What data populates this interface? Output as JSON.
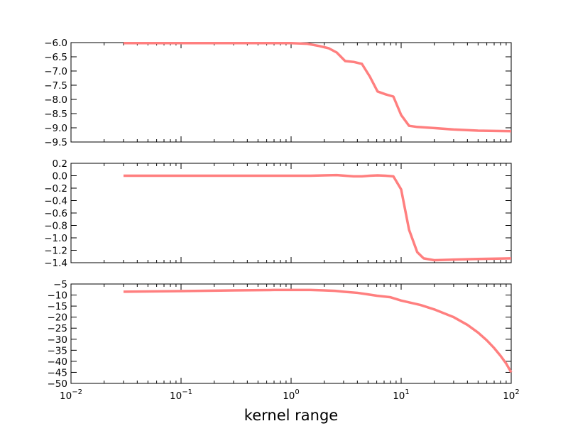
{
  "chart_data": [
    {
      "type": "line",
      "title": "",
      "xlabel": "",
      "ylabel": "",
      "xscale": "log",
      "xlim": [
        0.01,
        100
      ],
      "ylim": [
        -9.5,
        -6.0
      ],
      "yticks": [
        "-6.0",
        "-6.5",
        "-7.0",
        "-7.5",
        "-8.0",
        "-8.5",
        "-9.0",
        "-9.5"
      ],
      "xtick_labels_shown": false,
      "color": "#ff7f7f",
      "series": [
        {
          "x": [
            0.03,
            0.1,
            0.5,
            1.0,
            1.4,
            1.8,
            2.2,
            2.6,
            3.1,
            3.7,
            4.4,
            5.2,
            6.1,
            7.2,
            8.5,
            10.0,
            11.8,
            14.0,
            20.0,
            30.0,
            50.0,
            100.0
          ],
          "y": [
            -6.02,
            -6.02,
            -6.02,
            -6.02,
            -6.04,
            -6.12,
            -6.2,
            -6.35,
            -6.65,
            -6.68,
            -6.75,
            -7.2,
            -7.72,
            -7.82,
            -7.9,
            -8.55,
            -8.93,
            -8.97,
            -9.01,
            -9.06,
            -9.1,
            -9.12
          ]
        }
      ]
    },
    {
      "type": "line",
      "title": "",
      "xlabel": "",
      "ylabel": "",
      "xscale": "log",
      "xlim": [
        0.01,
        100
      ],
      "ylim": [
        -1.4,
        0.2
      ],
      "yticks": [
        "0.2",
        "0.0",
        "-0.2",
        "-0.4",
        "-0.6",
        "-0.8",
        "-1.0",
        "-1.2",
        "-1.4"
      ],
      "xtick_labels_shown": false,
      "color": "#ff7f7f",
      "series": [
        {
          "x": [
            0.03,
            0.1,
            0.5,
            1.0,
            1.5,
            2.0,
            2.6,
            3.1,
            3.7,
            4.4,
            5.2,
            6.1,
            7.2,
            8.5,
            10.0,
            11.8,
            14.0,
            16.0,
            20.0,
            30.0,
            50.0,
            100.0
          ],
          "y": [
            0.0,
            0.0,
            0.0,
            0.0,
            0.0,
            0.005,
            0.01,
            0.0,
            -0.01,
            -0.01,
            0.0,
            0.005,
            0.0,
            -0.01,
            -0.22,
            -0.87,
            -1.23,
            -1.33,
            -1.36,
            -1.35,
            -1.34,
            -1.33
          ]
        }
      ]
    },
    {
      "type": "line",
      "title": "",
      "xlabel": "kernel range",
      "ylabel": "",
      "xscale": "log",
      "xlim": [
        0.01,
        100
      ],
      "ylim": [
        -50,
        -5
      ],
      "yticks": [
        "-5",
        "-10",
        "-15",
        "-20",
        "-25",
        "-30",
        "-35",
        "-40",
        "-45",
        "-50"
      ],
      "xtick_labels_shown": true,
      "xticks": [
        {
          "value": 0.01,
          "base": "10",
          "exp": "-2"
        },
        {
          "value": 0.1,
          "base": "10",
          "exp": "-1"
        },
        {
          "value": 1,
          "base": "10",
          "exp": "0"
        },
        {
          "value": 10,
          "base": "10",
          "exp": "1"
        },
        {
          "value": 100,
          "base": "10",
          "exp": "2"
        }
      ],
      "color": "#ff7f7f",
      "series": [
        {
          "x": [
            0.03,
            0.1,
            0.3,
            0.7,
            1.0,
            1.5,
            2.0,
            2.5,
            3.0,
            4.0,
            5.0,
            6.0,
            8.0,
            10.0,
            15.0,
            20.0,
            30.0,
            40.0,
            50.0,
            60.0,
            70.0,
            80.0,
            90.0,
            100.0
          ],
          "y": [
            -8.5,
            -8.2,
            -7.9,
            -7.7,
            -7.7,
            -7.7,
            -7.9,
            -8.1,
            -8.5,
            -9.0,
            -9.7,
            -10.3,
            -11.0,
            -12.5,
            -14.5,
            -16.5,
            -20.0,
            -23.5,
            -27.0,
            -30.5,
            -34.0,
            -37.5,
            -41.0,
            -45.0
          ]
        }
      ]
    }
  ]
}
